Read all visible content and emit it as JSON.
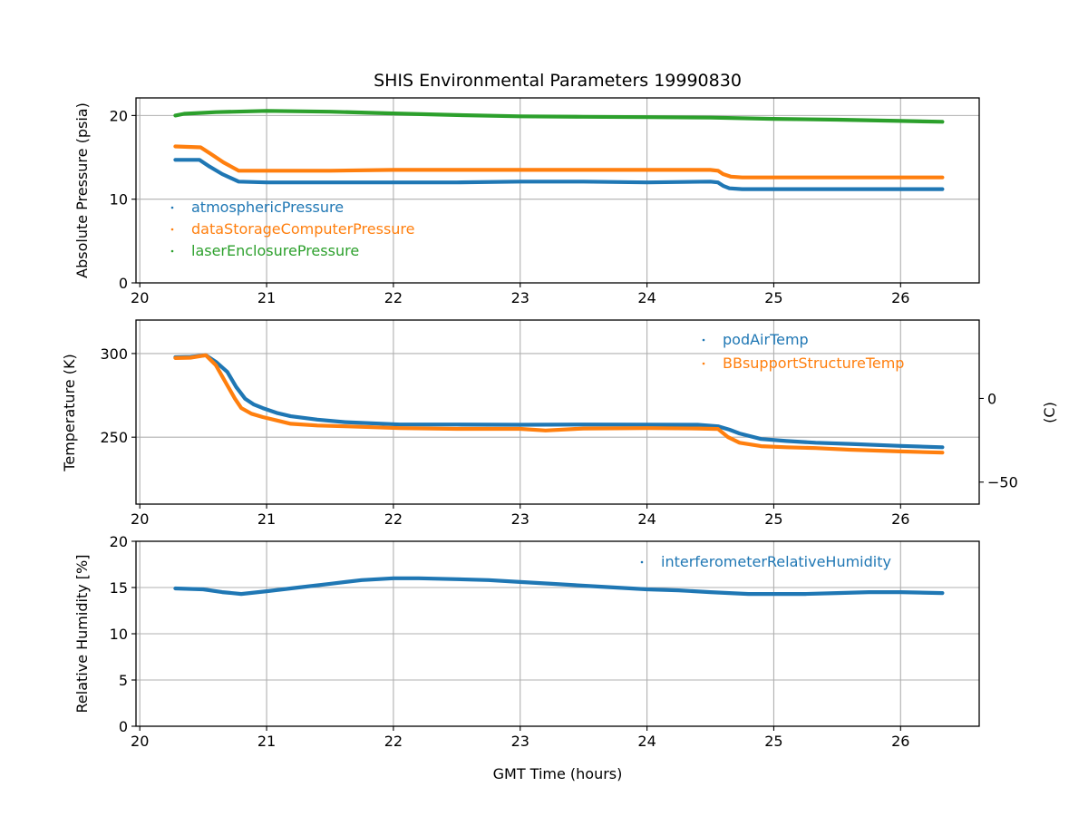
{
  "chart_data": {
    "type": "line",
    "title": "SHIS Environmental Parameters 19990830",
    "shared_x": {
      "label": "GMT Time (hours)",
      "range": [
        19.97,
        26.62
      ],
      "ticks": [
        20,
        21,
        22,
        23,
        24,
        25,
        26
      ],
      "tick_labels": [
        "20",
        "21",
        "22",
        "23",
        "24",
        "25",
        "26"
      ]
    },
    "panels": [
      {
        "id": "pressure",
        "ylabel": "Absolute Pressure (psia)",
        "ylim": [
          0,
          22.1
        ],
        "yticks": [
          0,
          10,
          20
        ],
        "ytick_labels": [
          "0",
          "10",
          "20"
        ],
        "grid": true,
        "legend_position": "lower-left",
        "series": [
          {
            "name": "atmosphericPressure",
            "color": "#1f77b4",
            "x": [
              20.28,
              20.47,
              20.55,
              20.65,
              20.78,
              21.0,
              21.5,
              22.0,
              22.5,
              23.0,
              23.5,
              24.0,
              24.5,
              24.56,
              24.6,
              24.65,
              24.75,
              25.0,
              25.5,
              26.0,
              26.33
            ],
            "y": [
              14.7,
              14.7,
              13.9,
              13.0,
              12.1,
              12.0,
              12.0,
              12.0,
              12.0,
              12.1,
              12.1,
              12.0,
              12.1,
              12.0,
              11.6,
              11.3,
              11.2,
              11.2,
              11.2,
              11.2,
              11.2
            ]
          },
          {
            "name": "dataStorageComputerPressure",
            "color": "#ff7f0e",
            "x": [
              20.28,
              20.48,
              20.56,
              20.66,
              20.78,
              21.0,
              21.5,
              22.0,
              22.5,
              23.0,
              23.5,
              24.0,
              24.5,
              24.56,
              24.6,
              24.66,
              24.75,
              25.0,
              25.5,
              26.0,
              26.33
            ],
            "y": [
              16.3,
              16.2,
              15.4,
              14.4,
              13.4,
              13.4,
              13.4,
              13.5,
              13.5,
              13.5,
              13.5,
              13.5,
              13.5,
              13.4,
              13.0,
              12.7,
              12.6,
              12.6,
              12.6,
              12.6,
              12.6
            ]
          },
          {
            "name": "laserEnclosurePressure",
            "color": "#2ca02c",
            "x": [
              20.28,
              20.35,
              20.6,
              21.0,
              21.5,
              22.0,
              22.5,
              23.0,
              23.5,
              24.0,
              24.5,
              25.0,
              25.5,
              26.0,
              26.33
            ],
            "y": [
              20.0,
              20.2,
              20.4,
              20.55,
              20.45,
              20.25,
              20.05,
              19.9,
              19.85,
              19.8,
              19.75,
              19.6,
              19.5,
              19.35,
              19.25
            ]
          }
        ]
      },
      {
        "id": "temperature",
        "ylabel": "Temperature (K)",
        "ylim": [
          210,
          320
        ],
        "yticks": [
          250,
          300
        ],
        "ytick_labels": [
          "250",
          "300"
        ],
        "secondary_y": {
          "label": "(C)",
          "ticks": [
            0,
            -50
          ],
          "tick_labels": [
            "0",
            "−50"
          ],
          "offset_K": 273.15
        },
        "grid": true,
        "legend_position": "upper-right",
        "series": [
          {
            "name": "podAirTemp",
            "color": "#1f77b4",
            "x": [
              20.28,
              20.4,
              20.52,
              20.6,
              20.69,
              20.76,
              20.83,
              20.9,
              20.97,
              21.08,
              21.19,
              21.4,
              21.62,
              22.05,
              22.5,
              23.0,
              23.5,
              24.0,
              24.4,
              24.56,
              24.65,
              24.73,
              24.9,
              25.1,
              25.33,
              25.6,
              26.0,
              26.33
            ],
            "y": [
              297.8,
              298.0,
              299.0,
              295.0,
              289.0,
              280.0,
              273.0,
              269.5,
              267.4,
              264.5,
              262.5,
              260.5,
              259.0,
              257.6,
              257.6,
              257.4,
              257.6,
              257.5,
              257.4,
              256.5,
              254.5,
              252.2,
              248.9,
              247.7,
              246.7,
              246.0,
              244.8,
              244.0
            ]
          },
          {
            "name": "BBsupportStructureTemp",
            "color": "#ff7f0e",
            "x": [
              20.28,
              20.4,
              20.52,
              20.6,
              20.69,
              20.75,
              20.8,
              20.88,
              20.97,
              21.08,
              21.19,
              21.4,
              21.62,
              22.05,
              22.5,
              23.0,
              23.2,
              23.5,
              24.0,
              24.4,
              24.56,
              24.64,
              24.73,
              24.9,
              25.1,
              25.33,
              25.6,
              26.0,
              26.33
            ],
            "y": [
              297.3,
              297.5,
              299.0,
              293.0,
              281.0,
              273.0,
              267.4,
              264.0,
              262.0,
              260.0,
              258.0,
              257.0,
              256.5,
              255.4,
              255.0,
              255.0,
              254.0,
              255.2,
              255.4,
              255.2,
              254.9,
              250.0,
              246.7,
              244.6,
              244.0,
              243.5,
              242.5,
              241.5,
              240.8
            ]
          }
        ]
      },
      {
        "id": "humidity",
        "ylabel": "Relative Humidity [%]",
        "ylim": [
          0,
          20
        ],
        "yticks": [
          0,
          5,
          10,
          15,
          20
        ],
        "ytick_labels": [
          "0",
          "5",
          "10",
          "15",
          "20"
        ],
        "grid": true,
        "legend_position": "upper-right",
        "series": [
          {
            "name": "interferometerRelativeHumidity",
            "color": "#1f77b4",
            "x": [
              20.28,
              20.5,
              20.65,
              20.8,
              21.0,
              21.25,
              21.5,
              21.75,
              22.0,
              22.2,
              22.5,
              22.75,
              23.0,
              23.25,
              23.5,
              23.75,
              24.0,
              24.25,
              24.5,
              24.8,
              25.0,
              25.25,
              25.5,
              25.75,
              26.0,
              26.33
            ],
            "y": [
              14.9,
              14.8,
              14.5,
              14.3,
              14.6,
              15.0,
              15.4,
              15.8,
              16.0,
              16.0,
              15.9,
              15.8,
              15.6,
              15.4,
              15.2,
              15.0,
              14.8,
              14.7,
              14.5,
              14.3,
              14.3,
              14.3,
              14.4,
              14.5,
              14.5,
              14.4
            ]
          }
        ]
      }
    ]
  }
}
